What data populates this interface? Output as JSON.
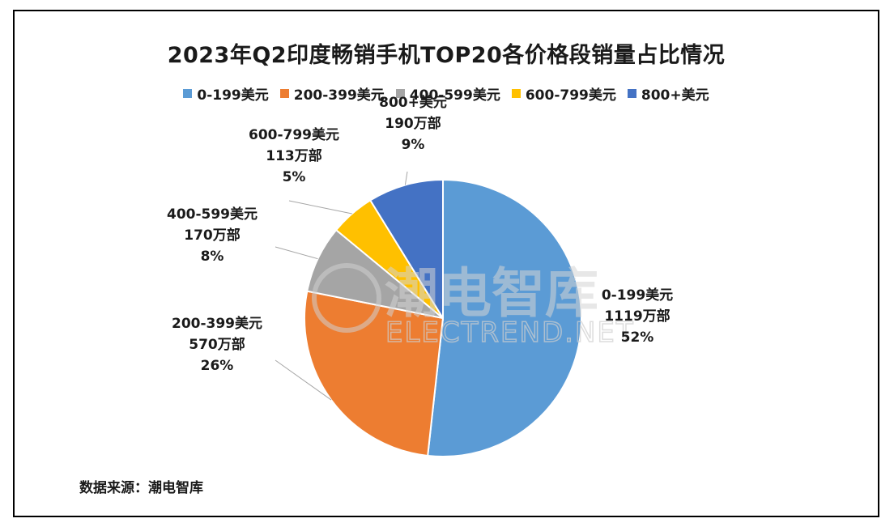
{
  "chart_data": {
    "type": "pie",
    "title": "2023年Q2印度畅销手机TOP20各价格段销量占比情况",
    "legend_position": "top",
    "slices": [
      {
        "name": "0-199美元",
        "value": 1119,
        "value_label": "1119万部",
        "percent_label": "52%",
        "color": "#5B9BD5"
      },
      {
        "name": "200-399美元",
        "value": 570,
        "value_label": "570万部",
        "percent_label": "26%",
        "color": "#ED7D31"
      },
      {
        "name": "400-599美元",
        "value": 170,
        "value_label": "170万部",
        "percent_label": "8%",
        "color": "#A5A5A5"
      },
      {
        "name": "600-799美元",
        "value": 113,
        "value_label": "113万部",
        "percent_label": "5%",
        "color": "#FFC000"
      },
      {
        "name": "800+美元",
        "value": 190,
        "value_label": "190万部",
        "percent_label": "9%",
        "color": "#4472C4"
      }
    ]
  },
  "source": "数据来源：潮电智库",
  "watermark": {
    "cn": "潮电智库",
    "en": "ELECTREND.NET"
  }
}
